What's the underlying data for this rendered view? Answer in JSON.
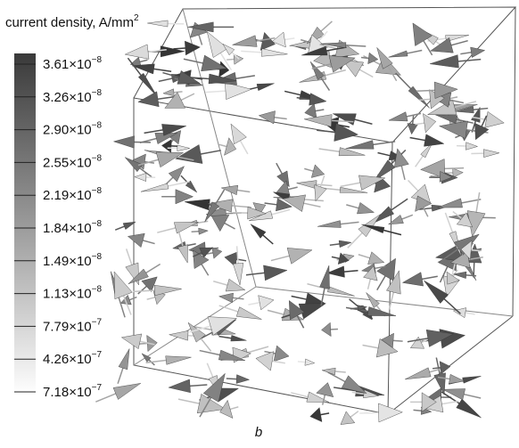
{
  "colorbar": {
    "title": "current density, A/mm",
    "title_exponent": "2",
    "labels": [
      {
        "mantissa": "3.61×10",
        "exponent": "−8"
      },
      {
        "mantissa": "3.26×10",
        "exponent": "−8"
      },
      {
        "mantissa": "2.90×10",
        "exponent": "−8"
      },
      {
        "mantissa": "2.55×10",
        "exponent": "−8"
      },
      {
        "mantissa": "2.19×10",
        "exponent": "−8"
      },
      {
        "mantissa": "1.84×10",
        "exponent": "−8"
      },
      {
        "mantissa": "1.49×10",
        "exponent": "−8"
      },
      {
        "mantissa": "1.13×10",
        "exponent": "−8"
      },
      {
        "mantissa": "7.79×10",
        "exponent": "−7"
      },
      {
        "mantissa": "4.26×10",
        "exponent": "−7"
      },
      {
        "mantissa": "7.18×10",
        "exponent": "−7"
      }
    ]
  },
  "caption": "b"
}
